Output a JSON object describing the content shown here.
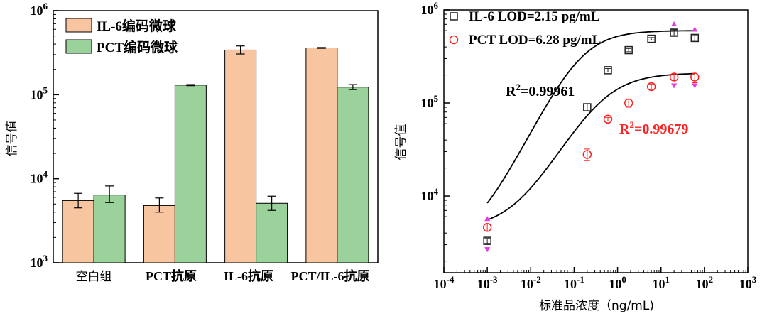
{
  "colors": {
    "il6": "#f7c59f",
    "pct": "#9bd29b",
    "black": "#000000",
    "red": "#ff2020",
    "magenta": "#e040e0"
  },
  "chart_data": [
    {
      "type": "bar",
      "title": "",
      "ylabel": "信号值",
      "xlabel": "",
      "yscale": "log",
      "ylim": [
        1000,
        1000000
      ],
      "y_ticks": [
        {
          "value": 1000,
          "base": "10",
          "exp": "3"
        },
        {
          "value": 10000,
          "base": "10",
          "exp": "4"
        },
        {
          "value": 100000,
          "base": "10",
          "exp": "5"
        },
        {
          "value": 1000000,
          "base": "10",
          "exp": "6"
        }
      ],
      "categories": [
        "空白组",
        "PCT抗原",
        "IL-6抗原",
        "PCT/IL-6抗原"
      ],
      "legend_position": "top-left",
      "series": [
        {
          "name": "IL-6编码微球",
          "values": [
            5500,
            4800,
            340000,
            360000
          ],
          "err_low": [
            4500,
            4000,
            305000,
            356000
          ],
          "err_high": [
            6700,
            5900,
            380000,
            364000
          ]
        },
        {
          "name": "PCT编码微球",
          "values": [
            6400,
            130000,
            5100,
            123000
          ],
          "err_low": [
            5200,
            128000,
            4200,
            115000
          ],
          "err_high": [
            8200,
            132000,
            6200,
            132000
          ]
        }
      ]
    },
    {
      "type": "scatter",
      "title": "",
      "xlabel": "标准品浓度（ng/mL)",
      "ylabel": "信号值",
      "xscale": "log",
      "yscale": "log",
      "xlim": [
        0.0001,
        1000
      ],
      "ylim": [
        1500,
        1000000
      ],
      "x_ticks": [
        {
          "value": 0.0001,
          "base": "10",
          "exp": "-4"
        },
        {
          "value": 0.001,
          "base": "10",
          "exp": "-3"
        },
        {
          "value": 0.01,
          "base": "10",
          "exp": "-2"
        },
        {
          "value": 0.1,
          "base": "10",
          "exp": "-1"
        },
        {
          "value": 1,
          "base": "10",
          "exp": "0"
        },
        {
          "value": 10,
          "base": "10",
          "exp": "1"
        },
        {
          "value": 100,
          "base": "10",
          "exp": "2"
        },
        {
          "value": 1000,
          "base": "10",
          "exp": "3"
        }
      ],
      "y_ticks": [
        {
          "value": 10000,
          "base": "10",
          "exp": "4"
        },
        {
          "value": 100000,
          "base": "10",
          "exp": "5"
        },
        {
          "value": 1000000,
          "base": "10",
          "exp": "6"
        }
      ],
      "legend_position": "top-left",
      "series": [
        {
          "name": "IL-6 LOD=2.15 pg/mL",
          "marker": "square",
          "x": [
            0.001,
            0.2,
            0.6,
            1.8,
            6,
            20,
            60
          ],
          "y": [
            3300,
            90000,
            225000,
            370000,
            490000,
            570000,
            500000
          ],
          "err": [
            200,
            8000,
            10000,
            15000,
            15000,
            40000,
            40000
          ],
          "fit": {
            "r2_label": "R",
            "r2_exp": "2",
            "r2_value": "=0.99961",
            "bottom": 3000,
            "top": 600000,
            "ec50": 0.14,
            "hill": 0.95
          }
        },
        {
          "name": "PCT LOD=6.28 pg/mL",
          "marker": "circle",
          "x": [
            0.001,
            0.2,
            0.6,
            1.8,
            6,
            20,
            60
          ],
          "y": [
            4600,
            28000,
            67000,
            100000,
            150000,
            190000,
            190000
          ],
          "err": [
            400,
            4000,
            3000,
            10000,
            10000,
            15000,
            25000
          ],
          "fit": {
            "r2_label": "R",
            "r2_exp": "2",
            "r2_value": "=0.99679",
            "bottom": 4400,
            "top": 210000,
            "ec50": 0.45,
            "hill": 0.85
          }
        }
      ],
      "outlier_marks_at_x": [
        0.001,
        20,
        60
      ]
    }
  ]
}
